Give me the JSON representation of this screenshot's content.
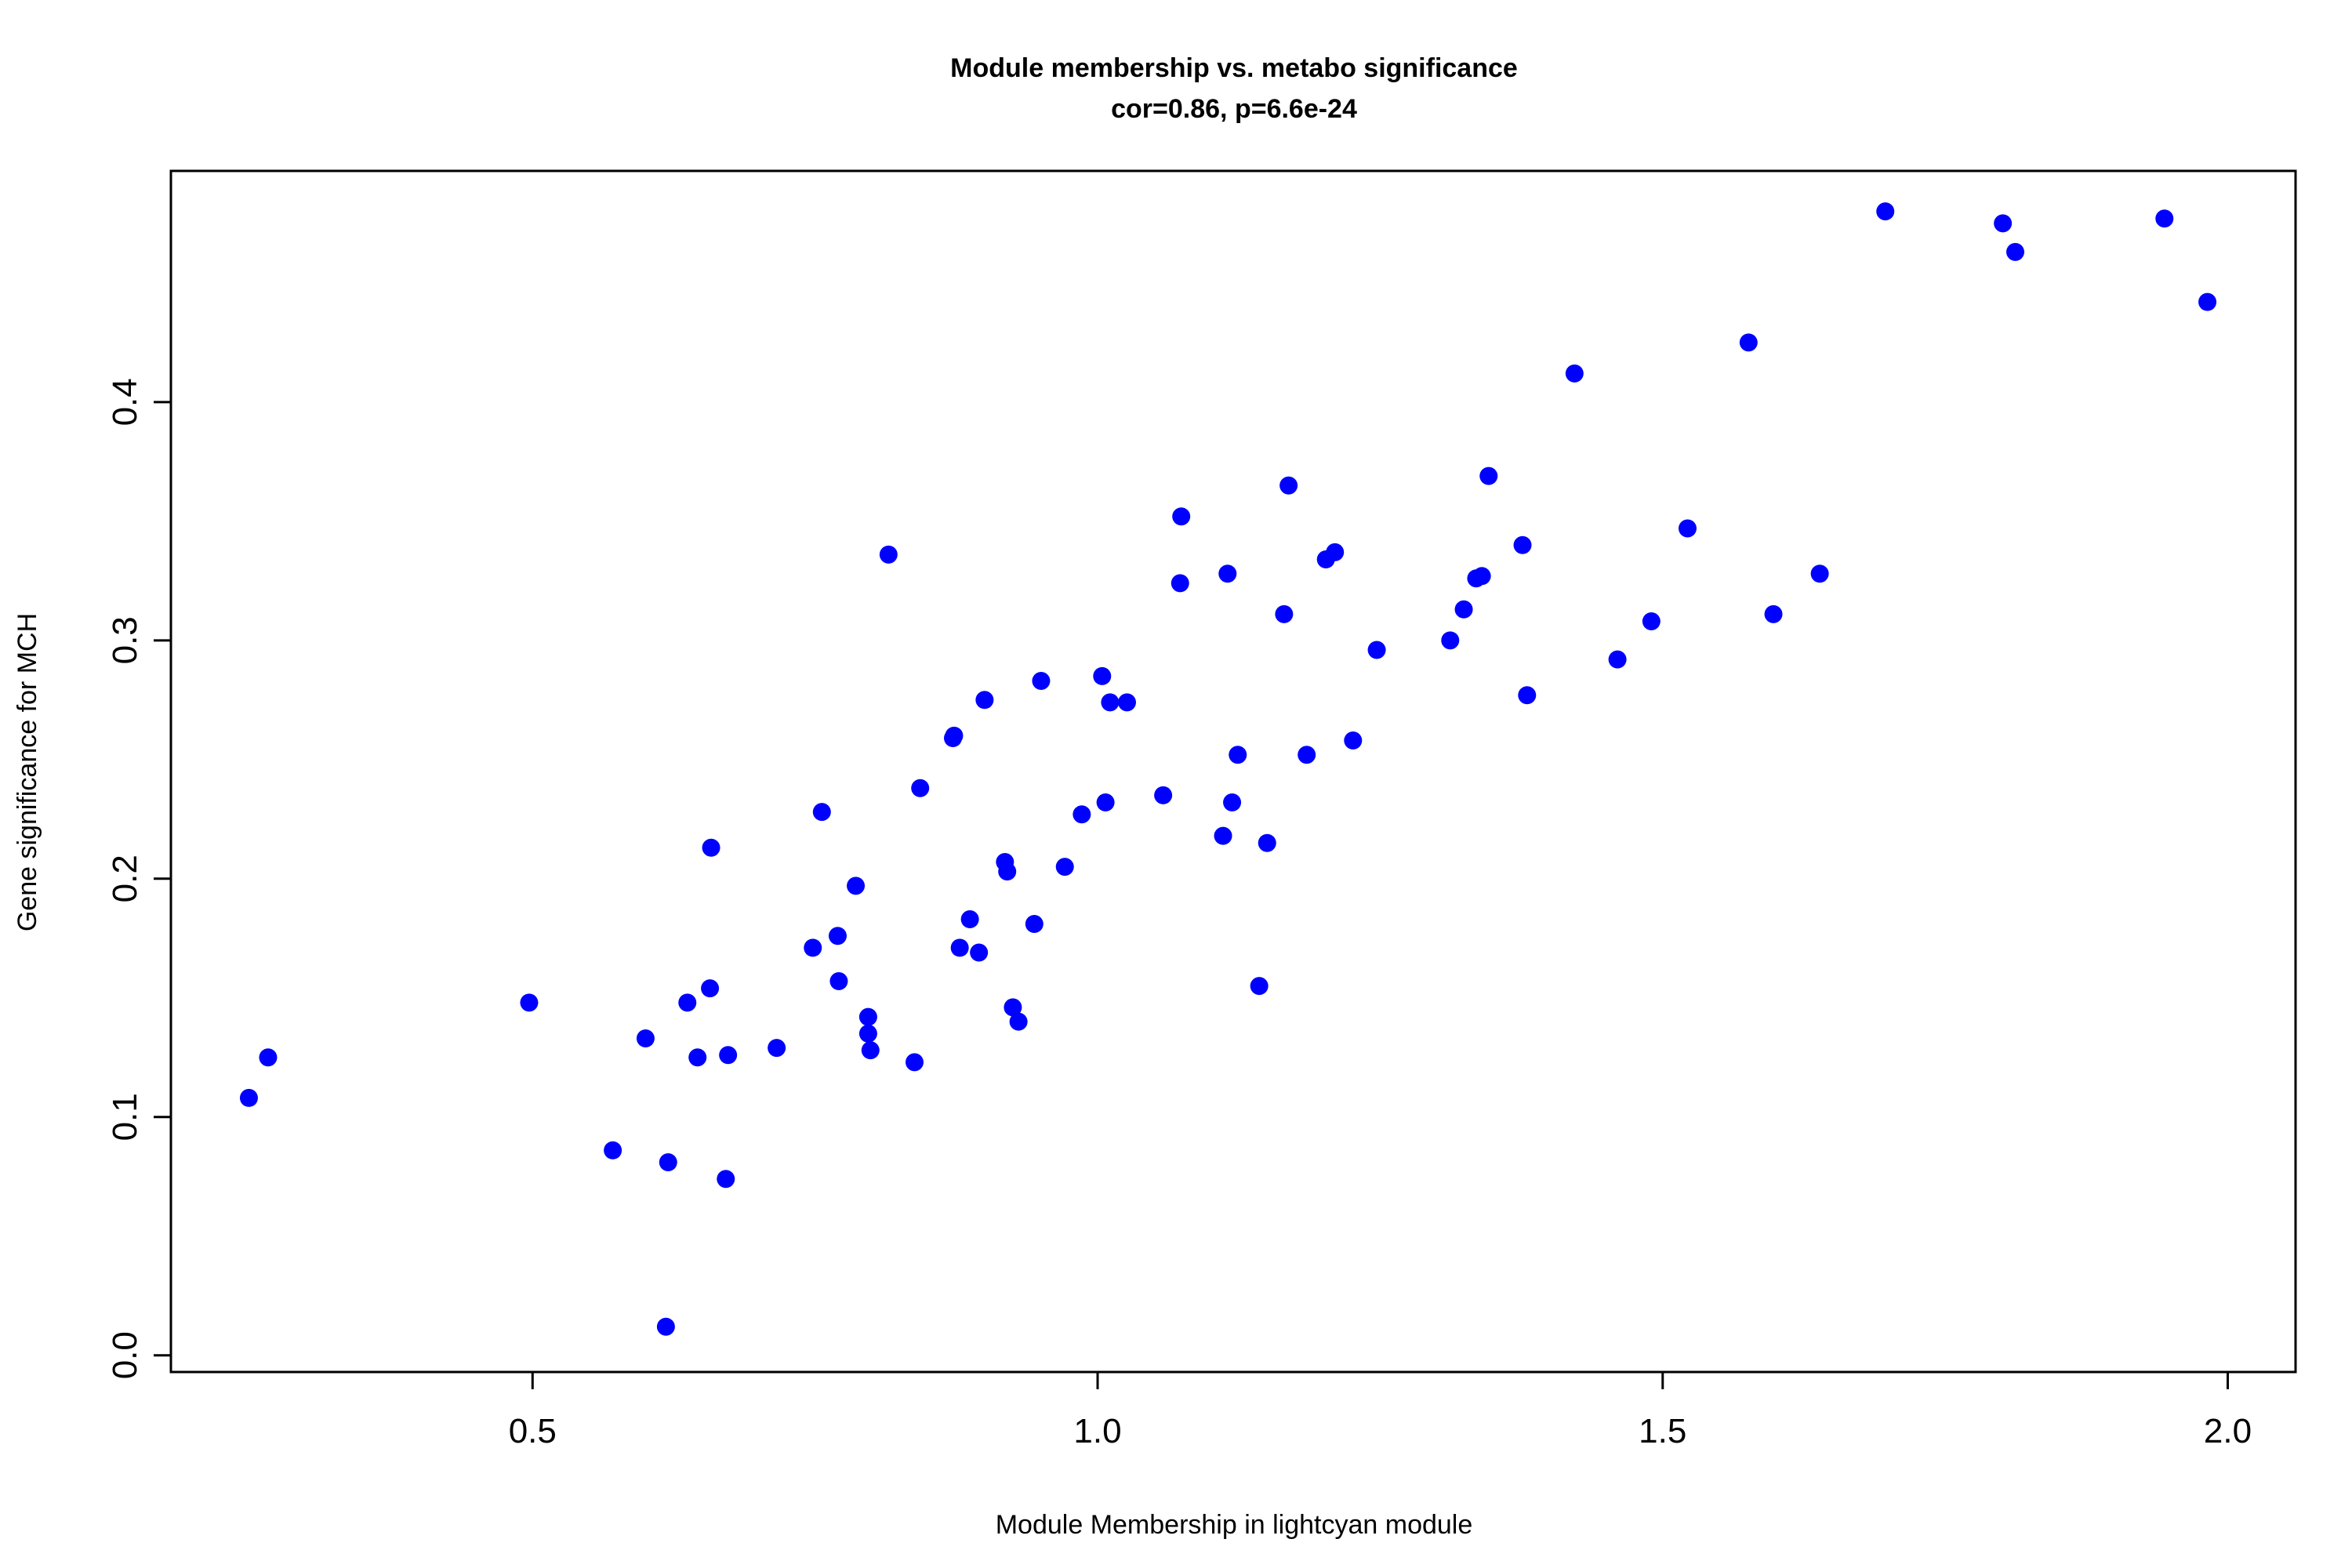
{
  "chart_data": {
    "type": "scatter",
    "title": "Module membership vs. metabo significance",
    "subtitle": "cor=0.86, p=6.6e-24",
    "xlabel": "Module Membership in lightcyan module",
    "ylabel": "Gene significance for MCH",
    "xlim": [
      0.18,
      2.06
    ],
    "ylim": [
      -0.007,
      0.497
    ],
    "xticks": [
      0.5,
      1.0,
      1.5,
      2.0
    ],
    "xtick_labels": [
      "0.5",
      "1.0",
      "1.5",
      "2.0"
    ],
    "yticks": [
      0.0,
      0.1,
      0.2,
      0.3,
      0.4
    ],
    "ytick_labels": [
      "0.0",
      "0.1",
      "0.2",
      "0.3",
      "0.4"
    ],
    "grid": false,
    "legend": "none",
    "marker_color": "#0000FF",
    "points": [
      [
        0.249,
        0.108
      ],
      [
        0.266,
        0.125
      ],
      [
        0.497,
        0.148
      ],
      [
        0.571,
        0.086
      ],
      [
        0.6,
        0.133
      ],
      [
        0.618,
        0.012
      ],
      [
        0.62,
        0.081
      ],
      [
        0.637,
        0.148
      ],
      [
        0.646,
        0.125
      ],
      [
        0.657,
        0.154
      ],
      [
        0.658,
        0.213
      ],
      [
        0.671,
        0.074
      ],
      [
        0.673,
        0.126
      ],
      [
        0.716,
        0.129
      ],
      [
        0.748,
        0.171
      ],
      [
        0.756,
        0.228
      ],
      [
        0.77,
        0.176
      ],
      [
        0.771,
        0.157
      ],
      [
        0.786,
        0.197
      ],
      [
        0.797,
        0.142
      ],
      [
        0.797,
        0.135
      ],
      [
        0.799,
        0.128
      ],
      [
        0.815,
        0.336
      ],
      [
        0.838,
        0.123
      ],
      [
        0.843,
        0.238
      ],
      [
        0.872,
        0.259
      ],
      [
        0.873,
        0.26
      ],
      [
        0.878,
        0.171
      ],
      [
        0.887,
        0.183
      ],
      [
        0.895,
        0.169
      ],
      [
        0.9,
        0.275
      ],
      [
        0.918,
        0.207
      ],
      [
        0.92,
        0.203
      ],
      [
        0.925,
        0.146
      ],
      [
        0.93,
        0.14
      ],
      [
        0.944,
        0.181
      ],
      [
        0.95,
        0.283
      ],
      [
        0.971,
        0.205
      ],
      [
        0.986,
        0.227
      ],
      [
        1.004,
        0.285
      ],
      [
        1.007,
        0.232
      ],
      [
        1.011,
        0.274
      ],
      [
        1.026,
        0.274
      ],
      [
        1.058,
        0.235
      ],
      [
        1.073,
        0.324
      ],
      [
        1.074,
        0.352
      ],
      [
        1.111,
        0.218
      ],
      [
        1.115,
        0.328
      ],
      [
        1.119,
        0.232
      ],
      [
        1.124,
        0.252
      ],
      [
        1.143,
        0.155
      ],
      [
        1.15,
        0.215
      ],
      [
        1.165,
        0.311
      ],
      [
        1.169,
        0.365
      ],
      [
        1.185,
        0.252
      ],
      [
        1.202,
        0.334
      ],
      [
        1.21,
        0.337
      ],
      [
        1.226,
        0.258
      ],
      [
        1.247,
        0.296
      ],
      [
        1.312,
        0.3
      ],
      [
        1.324,
        0.313
      ],
      [
        1.335,
        0.326
      ],
      [
        1.34,
        0.327
      ],
      [
        1.346,
        0.369
      ],
      [
        1.376,
        0.34
      ],
      [
        1.38,
        0.277
      ],
      [
        1.422,
        0.412
      ],
      [
        1.46,
        0.292
      ],
      [
        1.49,
        0.308
      ],
      [
        1.522,
        0.347
      ],
      [
        1.576,
        0.425
      ],
      [
        1.598,
        0.311
      ],
      [
        1.639,
        0.328
      ],
      [
        1.697,
        0.48
      ],
      [
        1.801,
        0.475
      ],
      [
        1.812,
        0.463
      ],
      [
        1.944,
        0.477
      ],
      [
        1.982,
        0.442
      ]
    ]
  }
}
